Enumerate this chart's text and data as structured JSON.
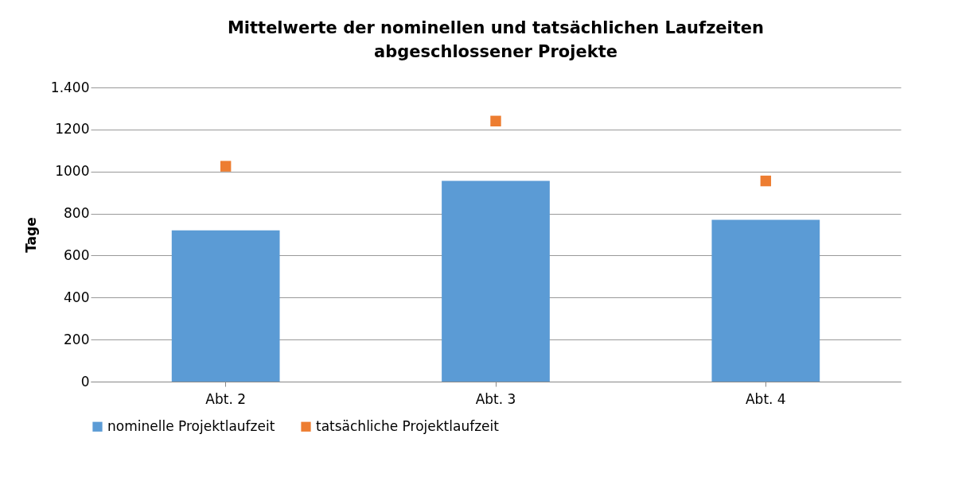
{
  "chart_data": {
    "type": "bar",
    "title": "Mittelwerte der nominellen und tatsächlichen Laufzeiten abgeschlossener Projekte",
    "ylabel": "Tage",
    "categories": [
      "Abt. 2",
      "Abt. 3",
      "Abt. 4"
    ],
    "series": [
      {
        "name": "nominelle Projektlaufzeit",
        "color": "#5b9bd5",
        "values": [
          720,
          955,
          770
        ]
      },
      {
        "name": "tatsächliche Projektlaufzeit",
        "color": "#ed7d31",
        "type": "scatter",
        "values": [
          1025,
          1240,
          955
        ]
      }
    ],
    "ylim": [
      0,
      1400
    ],
    "yticks": [
      0,
      200,
      400,
      600,
      800,
      1000,
      1200,
      {
        "value": 1400,
        "label": "1.400"
      }
    ],
    "grid": "y",
    "legend": "bottom",
    "marker": "square"
  }
}
